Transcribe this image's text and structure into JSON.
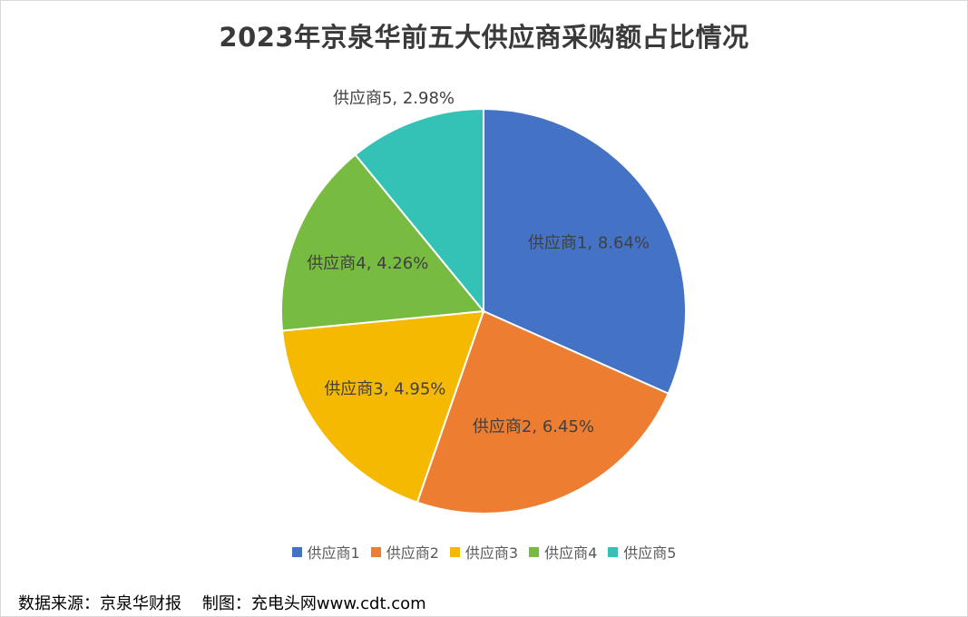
{
  "chart_data": {
    "type": "pie",
    "title": "2023年京泉华前五大供应商采购额占比情况",
    "slices": [
      {
        "name": "供应商1",
        "value": 8.64,
        "label": "供应商1, 8.64%",
        "color": "#4472c4"
      },
      {
        "name": "供应商2",
        "value": 6.45,
        "label": "供应商2, 6.45%",
        "color": "#ed7d31"
      },
      {
        "name": "供应商3",
        "value": 4.95,
        "label": "供应商3, 4.95%",
        "color": "#f4b900"
      },
      {
        "name": "供应商4",
        "value": 4.26,
        "label": "供应商4, 4.26%",
        "color": "#77bb41"
      },
      {
        "name": "供应商5",
        "value": 2.98,
        "label": "供应商5, 2.98%",
        "color": "#33c2b5"
      }
    ],
    "legend_position": "bottom"
  },
  "footer": {
    "source": "数据来源：京泉华财报    制图：充电头网www.cdt.com"
  }
}
